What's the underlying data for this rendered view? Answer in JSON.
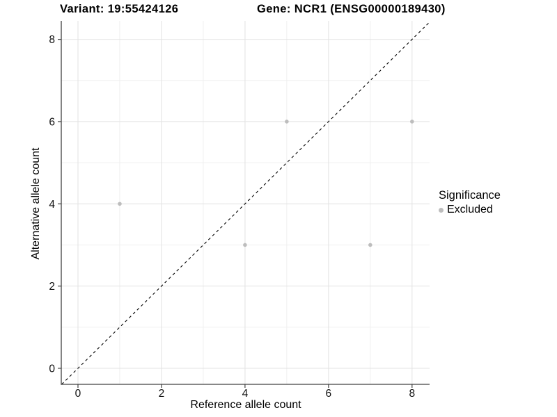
{
  "header": {
    "title_left": "Variant: 19:55424126",
    "title_right": "Gene: NCR1 (ENSG00000189430)"
  },
  "chart_data": {
    "type": "scatter",
    "title": "Variant: 19:55424126   Gene: NCR1 (ENSG00000189430)",
    "xlabel": "Reference allele count",
    "ylabel": "Alternative allele count",
    "xlim": [
      -0.4,
      8.42
    ],
    "ylim": [
      -0.39,
      8.45
    ],
    "xticks": [
      0,
      2,
      4,
      6,
      8
    ],
    "yticks": [
      0,
      2,
      4,
      6,
      8
    ],
    "minor_xticks": [
      1,
      3,
      5,
      7
    ],
    "minor_yticks": [
      1,
      3,
      5,
      7
    ],
    "grid": true,
    "identity_line": {
      "style": "dashed",
      "from": -0.39,
      "to": 8.42
    },
    "series": [
      {
        "name": "Excluded",
        "color": "#bdbdbd",
        "points": [
          {
            "x": 1,
            "y": 4
          },
          {
            "x": 4,
            "y": 3
          },
          {
            "x": 5,
            "y": 6
          },
          {
            "x": 7,
            "y": 3
          },
          {
            "x": 8,
            "y": 6
          }
        ]
      }
    ],
    "legend": {
      "title": "Significance",
      "position": "right",
      "items": [
        {
          "label": "Excluded",
          "color": "#bdbdbd"
        }
      ]
    },
    "colors": {
      "axis_line": "#404040",
      "tick_label": "#111111",
      "grid_major": "#e4e4e4",
      "grid_minor": "#efefef",
      "identity_line": "#000000",
      "background": "#ffffff"
    }
  }
}
